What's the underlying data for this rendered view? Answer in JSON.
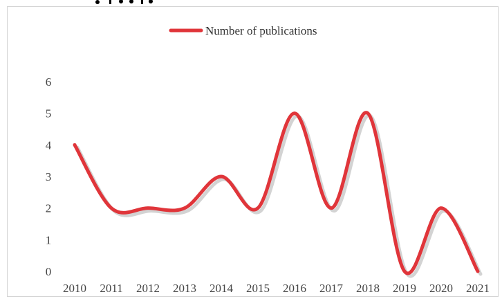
{
  "chart_data": {
    "type": "line",
    "title": "",
    "xlabel": "",
    "ylabel": "",
    "categories": [
      "2010",
      "2011",
      "2012",
      "2013",
      "2014",
      "2015",
      "2016",
      "2017",
      "2018",
      "2019",
      "2020",
      "2021"
    ],
    "series": [
      {
        "name": "Number of publications",
        "values": [
          4,
          2,
          2,
          2,
          3,
          2,
          5,
          2,
          5,
          0,
          2,
          0
        ]
      }
    ],
    "ylim": [
      0,
      6
    ],
    "yticks": [
      "0",
      "1",
      "2",
      "3",
      "4",
      "5",
      "6"
    ],
    "grid": false,
    "legend_position": "top",
    "smooth": true,
    "drop_lines": true,
    "colors": {
      "line": "#e0353a",
      "drop_line": "#1fb7d6",
      "shadow": "#c8c8c8"
    }
  }
}
